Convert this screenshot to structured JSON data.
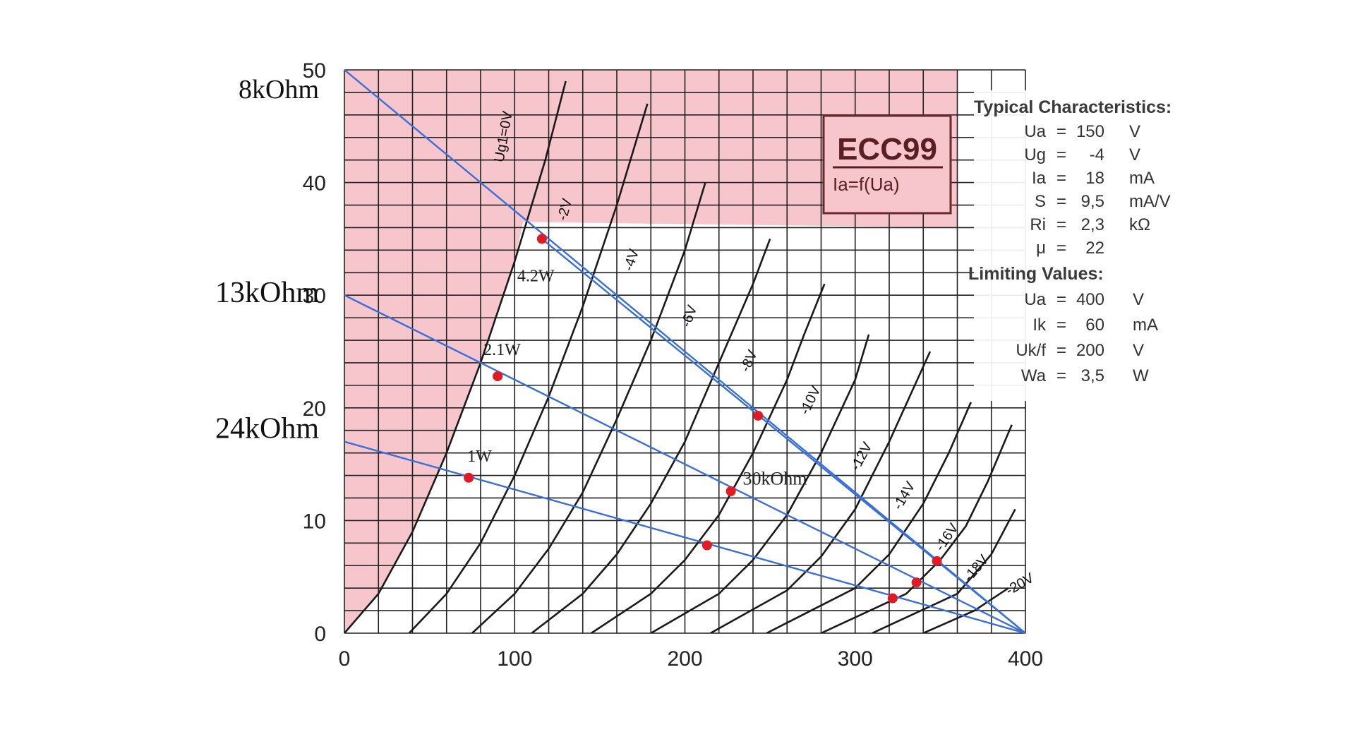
{
  "chart_data": {
    "type": "line",
    "title": "ECC99",
    "subtitle": "Ia=f(Ua)",
    "x_ticks": [
      0,
      100,
      200,
      300,
      400
    ],
    "y_ticks": [
      0,
      10,
      20,
      30,
      40,
      50
    ],
    "xlim": [
      0,
      400
    ],
    "ylim": [
      0,
      50
    ],
    "grid": true,
    "curves": [
      {
        "label": "Ug1=0V",
        "points": [
          [
            0,
            0
          ],
          [
            20,
            3.5
          ],
          [
            40,
            9
          ],
          [
            60,
            16
          ],
          [
            80,
            24
          ],
          [
            100,
            33
          ],
          [
            118,
            42
          ],
          [
            130,
            49
          ]
        ]
      },
      {
        "label": "-2V",
        "points": [
          [
            38,
            0
          ],
          [
            60,
            3.5
          ],
          [
            80,
            8
          ],
          [
            100,
            14
          ],
          [
            120,
            21
          ],
          [
            140,
            29
          ],
          [
            160,
            38
          ],
          [
            178,
            47
          ]
        ]
      },
      {
        "label": "-4V",
        "points": [
          [
            75,
            0
          ],
          [
            100,
            3.5
          ],
          [
            120,
            7.5
          ],
          [
            140,
            12.5
          ],
          [
            160,
            19
          ],
          [
            180,
            26
          ],
          [
            200,
            34
          ],
          [
            212,
            40
          ]
        ]
      },
      {
        "label": "-6V",
        "points": [
          [
            110,
            0
          ],
          [
            140,
            3.5
          ],
          [
            160,
            7
          ],
          [
            180,
            11.5
          ],
          [
            200,
            17
          ],
          [
            220,
            24
          ],
          [
            240,
            31
          ],
          [
            250,
            35
          ]
        ]
      },
      {
        "label": "-8V",
        "points": [
          [
            145,
            0
          ],
          [
            180,
            3.5
          ],
          [
            200,
            6.5
          ],
          [
            220,
            10.5
          ],
          [
            240,
            16
          ],
          [
            260,
            22.5
          ],
          [
            270,
            26.5
          ],
          [
            282,
            31
          ]
        ]
      },
      {
        "label": "-10V",
        "points": [
          [
            180,
            0
          ],
          [
            220,
            3.5
          ],
          [
            240,
            6.5
          ],
          [
            260,
            10.5
          ],
          [
            280,
            16
          ],
          [
            300,
            22.5
          ],
          [
            308,
            26.5
          ]
        ]
      },
      {
        "label": "-12V",
        "points": [
          [
            215,
            0
          ],
          [
            260,
            3.8
          ],
          [
            280,
            6.8
          ],
          [
            300,
            11
          ],
          [
            320,
            17
          ],
          [
            335,
            22
          ],
          [
            344,
            25
          ]
        ]
      },
      {
        "label": "-14V",
        "points": [
          [
            248,
            0
          ],
          [
            300,
            4
          ],
          [
            320,
            7
          ],
          [
            340,
            11.5
          ],
          [
            355,
            16
          ],
          [
            368,
            20.5
          ]
        ]
      },
      {
        "label": "-16V",
        "points": [
          [
            280,
            0
          ],
          [
            330,
            3.5
          ],
          [
            350,
            6.5
          ],
          [
            365,
            9.5
          ],
          [
            378,
            13.5
          ],
          [
            392,
            18.5
          ]
        ]
      },
      {
        "label": "-18V",
        "points": [
          [
            310,
            0
          ],
          [
            360,
            3.5
          ],
          [
            380,
            7
          ],
          [
            394,
            11
          ]
        ]
      },
      {
        "label": "-20V",
        "points": [
          [
            340,
            0
          ],
          [
            370,
            2
          ],
          [
            390,
            4
          ]
        ]
      }
    ],
    "load_lines": [
      {
        "label": "8kOhm",
        "from": [
          0,
          50
        ],
        "to": [
          400,
          0
        ]
      },
      {
        "label": "13kOhm",
        "from": [
          0,
          30
        ],
        "to": [
          400,
          0
        ]
      },
      {
        "label": "24kOhm",
        "from": [
          0,
          17
        ],
        "to": [
          400,
          0
        ]
      },
      {
        "label": "30kOhm",
        "from": [
          116,
          35
        ],
        "to": [
          400,
          0
        ]
      }
    ],
    "points": [
      {
        "x": 116,
        "y": 35,
        "label": "4.2W"
      },
      {
        "x": 90,
        "y": 22.8,
        "label": "2.1W"
      },
      {
        "x": 73,
        "y": 13.8,
        "label": "1W"
      },
      {
        "x": 243,
        "y": 19.3,
        "label": ""
      },
      {
        "x": 227,
        "y": 12.6,
        "label": ""
      },
      {
        "x": 213,
        "y": 7.8,
        "label": ""
      },
      {
        "x": 348,
        "y": 6.4,
        "label": ""
      },
      {
        "x": 336,
        "y": 4.5,
        "label": ""
      },
      {
        "x": 322,
        "y": 3.1,
        "label": ""
      }
    ],
    "annotations": [
      {
        "text": "30kOhm",
        "x": 234,
        "y": 13.2
      }
    ],
    "forbidden_region_color": "#f7c6cc",
    "curve_color": "#1a1a1a",
    "load_line_color": "#3a6fd8",
    "point_color": "#e01b24"
  },
  "spec_box": {
    "typical_header": "Typical Characteristics:",
    "typical": [
      {
        "sym": "Ua",
        "eq": "=",
        "val": "150",
        "unit": "V"
      },
      {
        "sym": "Ug",
        "eq": "=",
        "val": "-4",
        "unit": "V"
      },
      {
        "sym": "Ia",
        "eq": "=",
        "val": "18",
        "unit": "mA"
      },
      {
        "sym": "S",
        "eq": "=",
        "val": "9,5",
        "unit": "mA/V"
      },
      {
        "sym": "Ri",
        "eq": "=",
        "val": "2,3",
        "unit": "kΩ"
      },
      {
        "sym": "μ",
        "eq": "=",
        "val": "22",
        "unit": ""
      }
    ],
    "limiting_header": "Limiting Values:",
    "limiting": [
      {
        "sym": "Ua",
        "eq": "=",
        "val": "400",
        "unit": "V"
      },
      {
        "sym": "Ik",
        "eq": "=",
        "val": "60",
        "unit": "mA"
      },
      {
        "sym": "Uk/f",
        "eq": "=",
        "val": "200",
        "unit": "V"
      },
      {
        "sym": "Wa",
        "eq": "=",
        "val": "3,5",
        "unit": "W"
      }
    ]
  }
}
